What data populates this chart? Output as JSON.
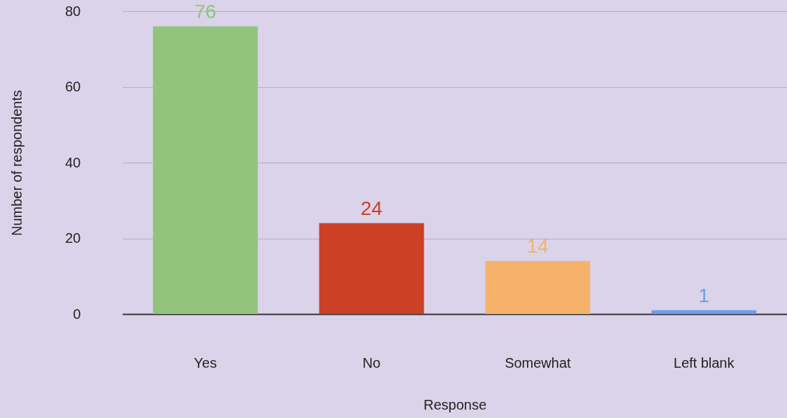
{
  "chart_data": {
    "type": "bar",
    "xlabel": "Response",
    "ylabel": "Number of respondents",
    "categories": [
      "Yes",
      "No",
      "Somewhat",
      "Left blank"
    ],
    "values": [
      76,
      24,
      14,
      1
    ],
    "colors": [
      "#93c47d",
      "#cc4125",
      "#f6b26b",
      "#6d9eeb"
    ],
    "ylim": [
      0,
      80
    ],
    "yticks": [
      0,
      20,
      40,
      60,
      80
    ],
    "grid": "y",
    "data_labels": true
  }
}
